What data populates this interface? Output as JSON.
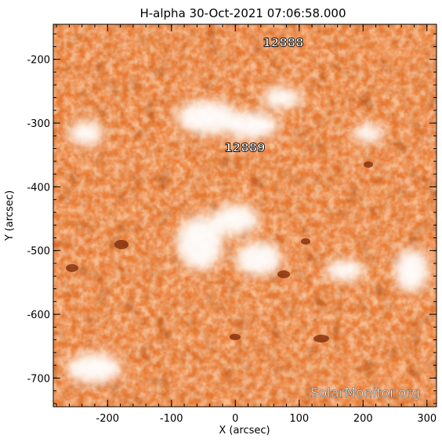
{
  "title": "H-alpha 30-Oct-2021 07:06:58.000",
  "axes": {
    "xlabel": "X (arcsec)",
    "ylabel": "Y (arcsec)",
    "xlim": [
      -285,
      315
    ],
    "ylim": [
      -745,
      -145
    ],
    "xticks": [
      "-200",
      "-100",
      "0",
      "100",
      "200",
      "300"
    ],
    "yticks": [
      "-200",
      "-300",
      "-400",
      "-500",
      "-600",
      "-700"
    ]
  },
  "regions": [
    {
      "label": "12888",
      "x": 75,
      "y": -180
    },
    {
      "label": "12889",
      "x": 15,
      "y": -345
    }
  ],
  "watermark": "SolarMonitor.org",
  "colors": {
    "background": "#ffffff",
    "frame": "#000000",
    "map_light": "#f7b986",
    "map_mid": "#e9782e",
    "map_dark": "#9a3608",
    "map_darkest": "#5a1a02"
  }
}
